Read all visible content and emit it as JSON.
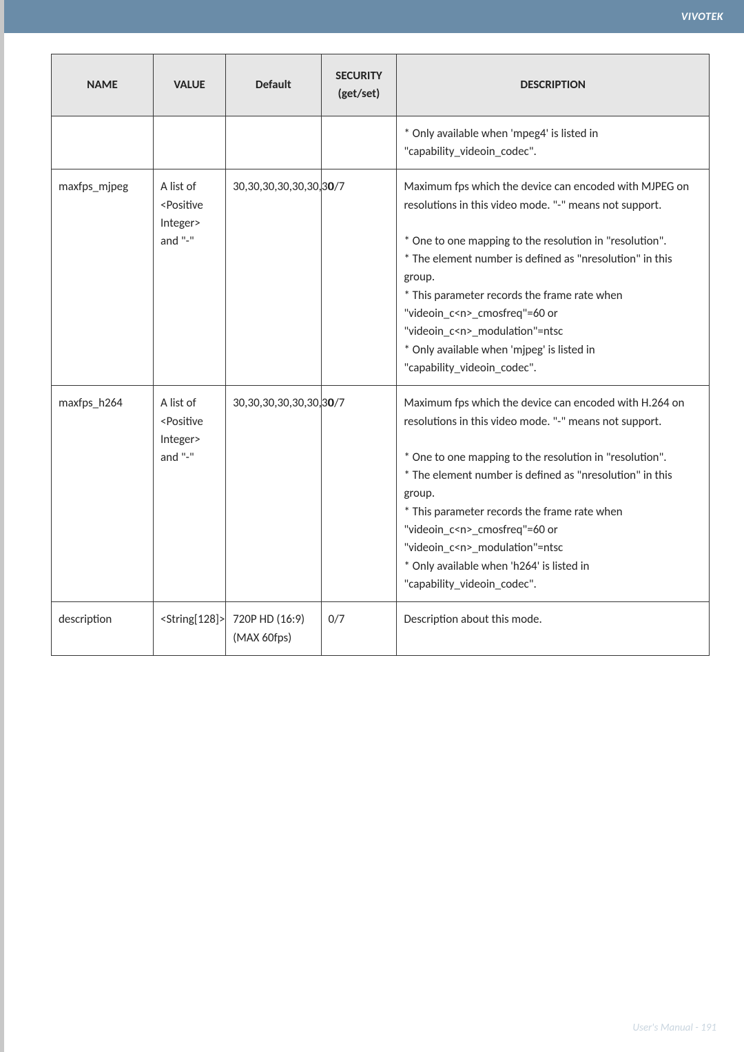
{
  "header": {
    "brand": "VIVOTEK"
  },
  "footer": {
    "text": "User's Manual - 191"
  },
  "table": {
    "columns": {
      "name": "NAME",
      "value": "VALUE",
      "default": "Default",
      "security": "SECURITY (get/set)",
      "description": "DESCRIPTION"
    },
    "rows": [
      {
        "name": "",
        "value": "",
        "default": "",
        "security": "",
        "desc_intro": "* Only available when 'mpeg4' is listed in \"capability_videoin_codec\".",
        "desc_rest": "",
        "tall": true
      },
      {
        "name": "maxfps_mjpeg",
        "value": "A list of <Positive Integer> and \"-\"",
        "default": "30,30,30,30,30,30,30",
        "security": "0/7",
        "desc_intro": "Maximum fps which the device can encoded with MJPEG on resolutions in this video mode. \"-\" means not support.",
        "desc_rest": "* One to one mapping to the resolution in \"resolution\".\n* The element number is defined as \"nresolution\" in this group.\n* This parameter records the frame rate when \"videoin_c<n>_cmosfreq\"=60 or \"videoin_c<n>_modulation\"=ntsc\n* Only available when 'mjpeg' is listed in \"capability_videoin_codec\"."
      },
      {
        "name": "maxfps_h264",
        "value": "A list of <Positive Integer> and \"-\"",
        "default": "30,30,30,30,30,30,30",
        "security": "0/7",
        "desc_intro": "Maximum fps which the device can encoded with H.264 on resolutions in this video mode. \"-\" means not support.",
        "desc_rest": "* One to one mapping to the resolution in \"resolution\".\n* The element number is defined as \"nresolution\" in this group.\n* This parameter records the frame rate when \"videoin_c<n>_cmosfreq\"=60 or \"videoin_c<n>_modulation\"=ntsc\n* Only available when 'h264' is listed in \"capability_videoin_codec\"."
      },
      {
        "name": "description",
        "value": "<String[128]>",
        "default": "720P HD (16:9) (MAX 60fps)",
        "security": "0/7",
        "desc_intro": "Description about this mode.",
        "desc_rest": ""
      }
    ]
  }
}
